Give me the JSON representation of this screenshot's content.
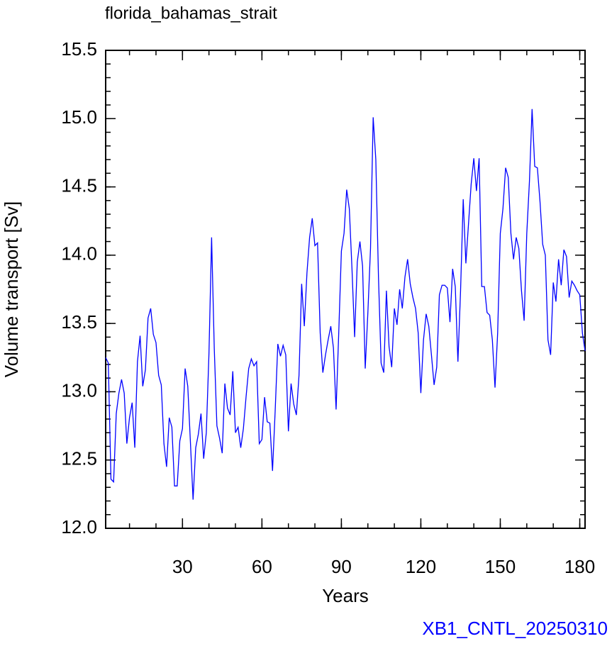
{
  "chart_data": {
    "type": "line",
    "title": "florida_bahamas_strait",
    "x_label": "Years",
    "y_label": "Volume transport [Sv]",
    "annotation": "XB1_CNTL_20250310",
    "xlim": [
      1,
      182
    ],
    "ylim": [
      12.0,
      15.5
    ],
    "xticks": [
      30,
      60,
      90,
      120,
      150,
      180
    ],
    "yticks": [
      {
        "value": 12.0,
        "label": "12.0"
      },
      {
        "value": 12.5,
        "label": "12.5"
      },
      {
        "value": 13.0,
        "label": "13.0"
      },
      {
        "value": 13.5,
        "label": "13.5"
      },
      {
        "value": 14.0,
        "label": "14.0"
      },
      {
        "value": 14.5,
        "label": "14.5"
      },
      {
        "value": 15.0,
        "label": "15.0"
      },
      {
        "value": 15.5,
        "label": "15.5"
      }
    ],
    "x": [
      1,
      2,
      3,
      4,
      5,
      6,
      7,
      8,
      9,
      10,
      11,
      12,
      13,
      14,
      15,
      16,
      17,
      18,
      19,
      20,
      21,
      22,
      23,
      24,
      25,
      26,
      27,
      28,
      29,
      30,
      31,
      32,
      33,
      34,
      35,
      36,
      37,
      38,
      39,
      40,
      41,
      42,
      43,
      44,
      45,
      46,
      47,
      48,
      49,
      50,
      51,
      52,
      53,
      54,
      55,
      56,
      57,
      58,
      59,
      60,
      61,
      62,
      63,
      64,
      65,
      66,
      67,
      68,
      69,
      70,
      71,
      72,
      73,
      74,
      75,
      76,
      77,
      78,
      79,
      80,
      81,
      82,
      83,
      84,
      85,
      86,
      87,
      88,
      89,
      90,
      91,
      92,
      93,
      94,
      95,
      96,
      97,
      98,
      99,
      100,
      101,
      102,
      103,
      104,
      105,
      106,
      107,
      108,
      109,
      110,
      111,
      112,
      113,
      114,
      115,
      116,
      117,
      118,
      119,
      120,
      121,
      122,
      123,
      124,
      125,
      126,
      127,
      128,
      129,
      130,
      131,
      132,
      133,
      134,
      135,
      136,
      137,
      138,
      139,
      140,
      141,
      142,
      143,
      144,
      145,
      146,
      147,
      148,
      149,
      150,
      151,
      152,
      153,
      154,
      155,
      156,
      157,
      158,
      159,
      160,
      161,
      162,
      163,
      164,
      165,
      166,
      167,
      168,
      169,
      170,
      171,
      172,
      173,
      174,
      175,
      176,
      177,
      178,
      179,
      180,
      181,
      182
    ],
    "series": [
      {
        "color": "#0000ff",
        "values": [
          13.25,
          13.21,
          12.36,
          12.34,
          12.84,
          12.99,
          13.09,
          12.99,
          12.62,
          12.81,
          12.92,
          12.59,
          13.22,
          13.41,
          13.04,
          13.16,
          13.54,
          13.61,
          13.42,
          13.36,
          13.12,
          13.05,
          12.62,
          12.45,
          12.81,
          12.74,
          12.31,
          12.31,
          12.64,
          12.73,
          13.17,
          13.04,
          12.63,
          12.21,
          12.59,
          12.69,
          12.84,
          12.51,
          12.7,
          13.28,
          14.13,
          13.32,
          12.75,
          12.66,
          12.55,
          13.06,
          12.88,
          12.83,
          13.15,
          12.7,
          12.74,
          12.59,
          12.73,
          12.96,
          13.17,
          13.24,
          13.19,
          13.22,
          12.62,
          12.65,
          12.96,
          12.78,
          12.77,
          12.42,
          12.86,
          13.35,
          13.26,
          13.34,
          13.27,
          12.71,
          13.06,
          12.91,
          12.83,
          13.12,
          13.79,
          13.48,
          13.87,
          14.13,
          14.27,
          14.07,
          14.09,
          13.43,
          13.14,
          13.27,
          13.38,
          13.48,
          13.32,
          12.87,
          13.43,
          14.03,
          14.16,
          14.48,
          14.34,
          13.9,
          13.4,
          13.95,
          14.1,
          13.92,
          13.17,
          13.58,
          14.05,
          15.01,
          14.7,
          13.84,
          13.21,
          13.14,
          13.74,
          13.33,
          13.18,
          13.61,
          13.49,
          13.75,
          13.61,
          13.84,
          13.97,
          13.79,
          13.69,
          13.61,
          13.43,
          12.99,
          13.38,
          13.57,
          13.48,
          13.27,
          13.05,
          13.18,
          13.71,
          13.78,
          13.78,
          13.76,
          13.51,
          13.9,
          13.77,
          13.22,
          13.74,
          14.41,
          13.94,
          14.23,
          14.52,
          14.71,
          14.47,
          14.71,
          13.77,
          13.77,
          13.58,
          13.56,
          13.38,
          13.03,
          13.43,
          14.16,
          14.34,
          14.64,
          14.57,
          14.16,
          13.97,
          14.13,
          14.05,
          13.74,
          13.52,
          14.16,
          14.54,
          15.07,
          14.65,
          14.64,
          14.39,
          14.08,
          14.0,
          13.38,
          13.27,
          13.8,
          13.66,
          13.97,
          13.78,
          14.04,
          13.99,
          13.69,
          13.81,
          13.78,
          13.74,
          13.71,
          13.43,
          13.3
        ]
      }
    ]
  }
}
